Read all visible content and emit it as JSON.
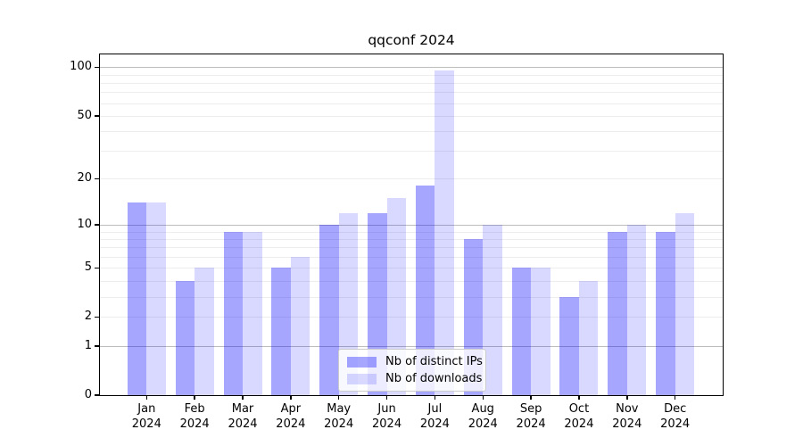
{
  "chart_data": {
    "type": "bar",
    "title": "qqconf 2024",
    "x_categories": [
      "Jan",
      "Feb",
      "Mar",
      "Apr",
      "May",
      "Jun",
      "Jul",
      "Aug",
      "Sep",
      "Oct",
      "Nov",
      "Dec"
    ],
    "x_year_label": "2024",
    "series": [
      {
        "name": "Nb of distinct IPs",
        "color": "rgba(0,0,255,0.35)",
        "values": [
          14,
          4,
          9,
          5,
          10,
          12,
          18,
          8,
          5,
          3,
          9,
          9
        ]
      },
      {
        "name": "Nb of downloads",
        "color": "rgba(0,0,255,0.15)",
        "values": [
          14,
          5,
          9,
          6,
          12,
          15,
          96,
          10,
          5,
          4,
          10,
          12
        ]
      }
    ],
    "yscale": "log1p",
    "ylim": [
      0,
      120
    ],
    "yticks": [
      0,
      1,
      2,
      5,
      10,
      20,
      50,
      100
    ],
    "ytick_labels": [
      "0",
      "1",
      "2",
      "5",
      "10",
      "20",
      "50",
      "100"
    ],
    "grid": "on",
    "grid_minor_levels": [
      2,
      3,
      4,
      5,
      6,
      7,
      8,
      9,
      20,
      30,
      40,
      50,
      60,
      70,
      80,
      90
    ],
    "grid_major_levels": [
      1,
      10,
      100
    ],
    "legend_position": "lower center",
    "xlabel": "",
    "ylabel": ""
  }
}
